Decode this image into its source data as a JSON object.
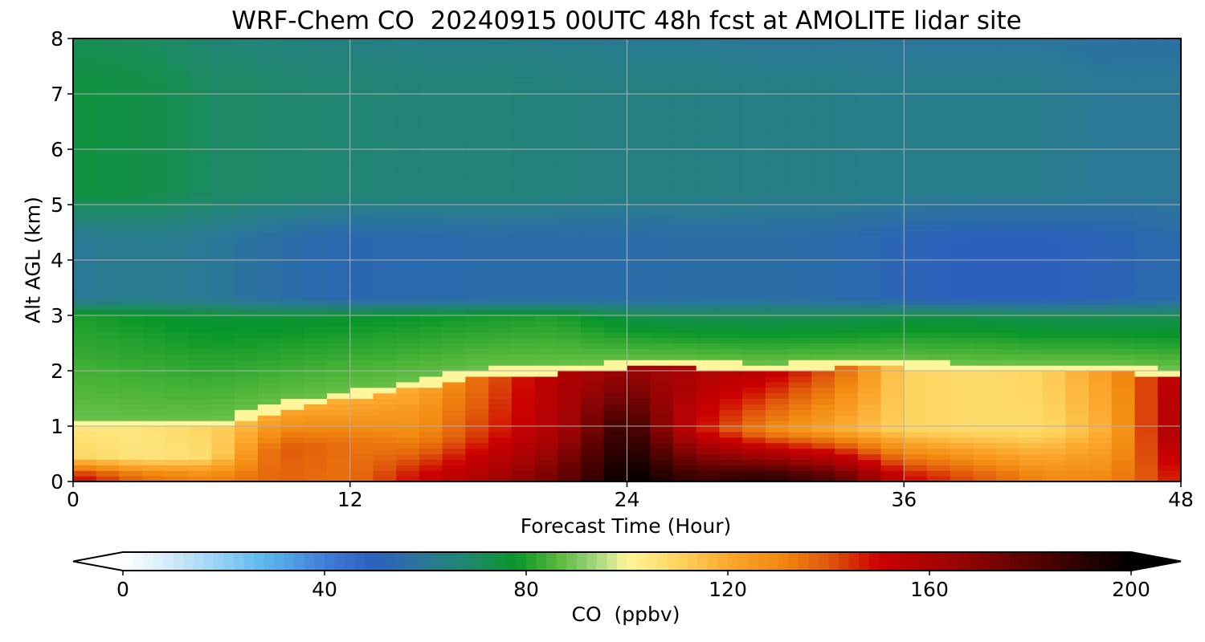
{
  "chart_data": {
    "type": "heatmap",
    "title": "WRF-Chem CO  20240915 00UTC 48h fcst at AMOLITE lidar site",
    "xlabel": "Forecast Time (Hour)",
    "ylabel": "Alt AGL (km)",
    "xlim": [
      0,
      48
    ],
    "ylim": [
      0,
      8
    ],
    "xticks": [
      0,
      12,
      24,
      36,
      48
    ],
    "yticks": [
      0,
      1,
      2,
      3,
      4,
      5,
      6,
      7,
      8
    ],
    "grid": true,
    "x": [
      0,
      3,
      6,
      9,
      12,
      15,
      18,
      21,
      24,
      27,
      30,
      33,
      36,
      39,
      42,
      45,
      48
    ],
    "y": [
      0.05,
      0.25,
      0.5,
      0.75,
      0.9,
      1.1,
      1.25,
      1.4,
      1.6,
      1.75,
      1.9,
      2.05,
      2.2,
      2.35,
      2.5,
      2.75,
      3.0,
      3.5,
      4.0,
      4.5,
      5.0,
      5.5,
      6.0,
      6.5,
      7.0,
      7.5,
      8.0
    ],
    "z_layers": {
      "surface": [
        150,
        135,
        130,
        138,
        135,
        150,
        160,
        175,
        200,
        185,
        190,
        180,
        150,
        140,
        130,
        130,
        150
      ],
      "lower_pbl": [
        110,
        105,
        108,
        140,
        135,
        130,
        145,
        160,
        190,
        150,
        130,
        120,
        110,
        108,
        108,
        120,
        165
      ],
      "upper_pbl": [
        105,
        105,
        110,
        120,
        118,
        120,
        138,
        158,
        165,
        160,
        155,
        140,
        110,
        108,
        110,
        125,
        160
      ],
      "pbl_top_km": [
        1.0,
        1.0,
        1.0,
        1.35,
        1.55,
        1.75,
        2.0,
        2.0,
        2.1,
        2.1,
        2.05,
        2.1,
        2.1,
        2.05,
        2.05,
        2.05,
        1.95
      ],
      "residual_layer": [
        80,
        78,
        76,
        76,
        77,
        78,
        79,
        80,
        74,
        72,
        72,
        72,
        74,
        74,
        72,
        72,
        72
      ],
      "lower_free_troposphere": [
        60,
        62,
        60,
        56,
        53,
        54,
        55,
        55,
        55,
        56,
        56,
        55,
        52,
        50,
        50,
        52,
        55
      ],
      "upper_free_troposphere": [
        75,
        74,
        70,
        68,
        67,
        66,
        66,
        65,
        64,
        64,
        63,
        63,
        62,
        62,
        62,
        60,
        60
      ]
    },
    "colorbar": {
      "label": "CO  (ppbv)",
      "range": [
        0,
        200
      ],
      "ticks": [
        0,
        40,
        80,
        120,
        160,
        200
      ],
      "extend": "both",
      "palette": [
        {
          "v": 0,
          "c": "#ffffff"
        },
        {
          "v": 10,
          "c": "#cfe8f7"
        },
        {
          "v": 20,
          "c": "#8fd0f4"
        },
        {
          "v": 28,
          "c": "#5fb8ee"
        },
        {
          "v": 40,
          "c": "#3f7fd8"
        },
        {
          "v": 50,
          "c": "#2c5fbe"
        },
        {
          "v": 60,
          "c": "#2a7896"
        },
        {
          "v": 70,
          "c": "#1c8a62"
        },
        {
          "v": 78,
          "c": "#08962a"
        },
        {
          "v": 86,
          "c": "#55b83a"
        },
        {
          "v": 94,
          "c": "#a4d880"
        },
        {
          "v": 100,
          "c": "#fff59a"
        },
        {
          "v": 110,
          "c": "#fdd560"
        },
        {
          "v": 120,
          "c": "#fca82e"
        },
        {
          "v": 130,
          "c": "#f28a10"
        },
        {
          "v": 140,
          "c": "#e0580c"
        },
        {
          "v": 150,
          "c": "#cc0000"
        },
        {
          "v": 165,
          "c": "#9c0404"
        },
        {
          "v": 180,
          "c": "#5a0202"
        },
        {
          "v": 200,
          "c": "#000000"
        }
      ]
    }
  }
}
